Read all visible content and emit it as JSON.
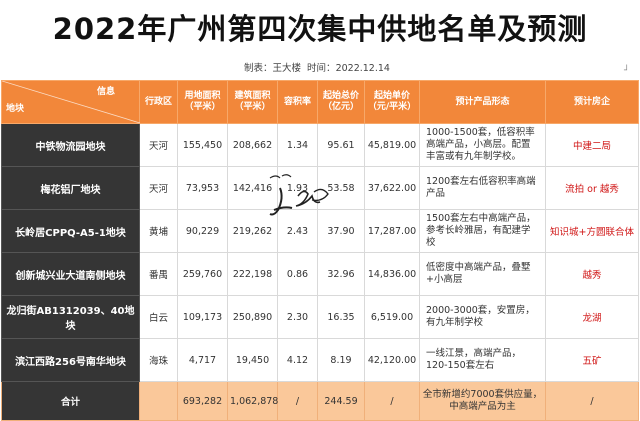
{
  "title": "2022年广州第四次集中供地名单及预测",
  "meta": {
    "maker_label": "制表：王大楼",
    "time_label": "时间：",
    "time": "2022.12.14"
  },
  "table": {
    "headers": {
      "info": "信息",
      "block": "地块",
      "district": "行政区",
      "land_area": "用地面积\n（平米）",
      "build_area": "建筑面积\n（平米）",
      "far": "容积率",
      "start_total": "起始总价\n（亿元）",
      "start_unit": "起始单价\n（元/平米）",
      "product": "预计产品形态",
      "company": "预计房企"
    },
    "rows": [
      {
        "name": "中铁物流园地块",
        "district": "天河",
        "land_area": "155,450",
        "build_area": "208,662",
        "far": "1.34",
        "start_total": "95.61",
        "start_unit": "45,819.00",
        "product": "1000-1500套，低容积率高端产品，小高层。配置丰富或有九年制学校。",
        "company": "中建二局"
      },
      {
        "name": "梅花铝厂地块",
        "district": "天河",
        "land_area": "73,953",
        "build_area": "142,416",
        "far": "1.93",
        "start_total": "53.58",
        "start_unit": "37,622.00",
        "product": "1200套左右低容积率高端产品",
        "company": "流拍 or 越秀"
      },
      {
        "name": "长岭居CPPQ-A5-1地块",
        "district": "黄埔",
        "land_area": "90,229",
        "build_area": "219,262",
        "far": "2.43",
        "start_total": "37.90",
        "start_unit": "17,287.00",
        "product": "1500套左右中高端产品，参考长岭雅居，有配建学校",
        "company": "知识城+方圆联合体"
      },
      {
        "name": "创新城兴业大道南侧地块",
        "district": "番禺",
        "land_area": "259,760",
        "build_area": "222,198",
        "far": "0.86",
        "start_total": "32.96",
        "start_unit": "14,836.00",
        "product": "低密度中高端产品，叠墅+小高层",
        "company": "越秀"
      },
      {
        "name": "龙归街AB1312039、40地块",
        "district": "白云",
        "land_area": "109,173",
        "build_area": "250,890",
        "far": "2.30",
        "start_total": "16.35",
        "start_unit": "6,519.00",
        "product": "2000-3000套，安置房，有九年制学校",
        "company": "龙湖"
      },
      {
        "name": "滨江西路256号南华地块",
        "district": "海珠",
        "land_area": "4,717",
        "build_area": "19,450",
        "far": "4.12",
        "start_total": "8.19",
        "start_unit": "42,120.00",
        "product": "一线江景，高端产品，120-150套左右",
        "company": "五矿"
      }
    ],
    "total": {
      "label": "合计",
      "district": "",
      "land_area": "693,282",
      "build_area": "1,062,878",
      "far": "/",
      "start_total": "244.59",
      "start_unit": "/",
      "product": "全市新增约7000套供应量，中高端产品为主",
      "company": "/"
    }
  },
  "colors": {
    "header": "#f2873a",
    "name_cell": "#353535",
    "total_row": "#fac89a",
    "company_text": "#d01515"
  }
}
